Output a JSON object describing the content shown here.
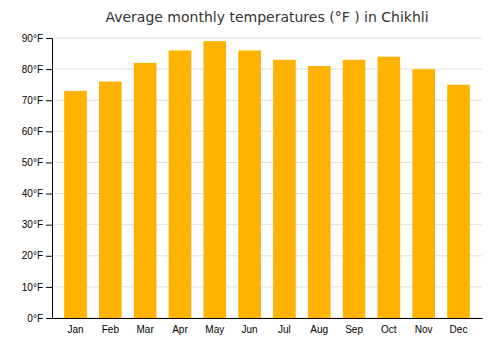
{
  "chart_data": {
    "type": "bar",
    "title": "Average monthly temperatures (°F ) in Chikhli",
    "categories": [
      "Jan",
      "Feb",
      "Mar",
      "Apr",
      "May",
      "Jun",
      "Jul",
      "Aug",
      "Sep",
      "Oct",
      "Nov",
      "Dec"
    ],
    "values": [
      73,
      76,
      82,
      86,
      89,
      86,
      83,
      81,
      83,
      84,
      80,
      75
    ],
    "color": "#FFB300",
    "ylim": [
      0,
      90
    ],
    "yticks": [
      {
        "value": 0,
        "label": "0°F"
      },
      {
        "value": 10,
        "label": "10°F"
      },
      {
        "value": 20,
        "label": "20°F"
      },
      {
        "value": 30,
        "label": "30°F"
      },
      {
        "value": 40,
        "label": "40°F"
      },
      {
        "value": 50,
        "label": "50°F"
      },
      {
        "value": 60,
        "label": "60°F"
      },
      {
        "value": 70,
        "label": "70°F"
      },
      {
        "value": 80,
        "label": "80°F"
      },
      {
        "value": 90,
        "label": "90°F"
      }
    ],
    "grid": true
  }
}
